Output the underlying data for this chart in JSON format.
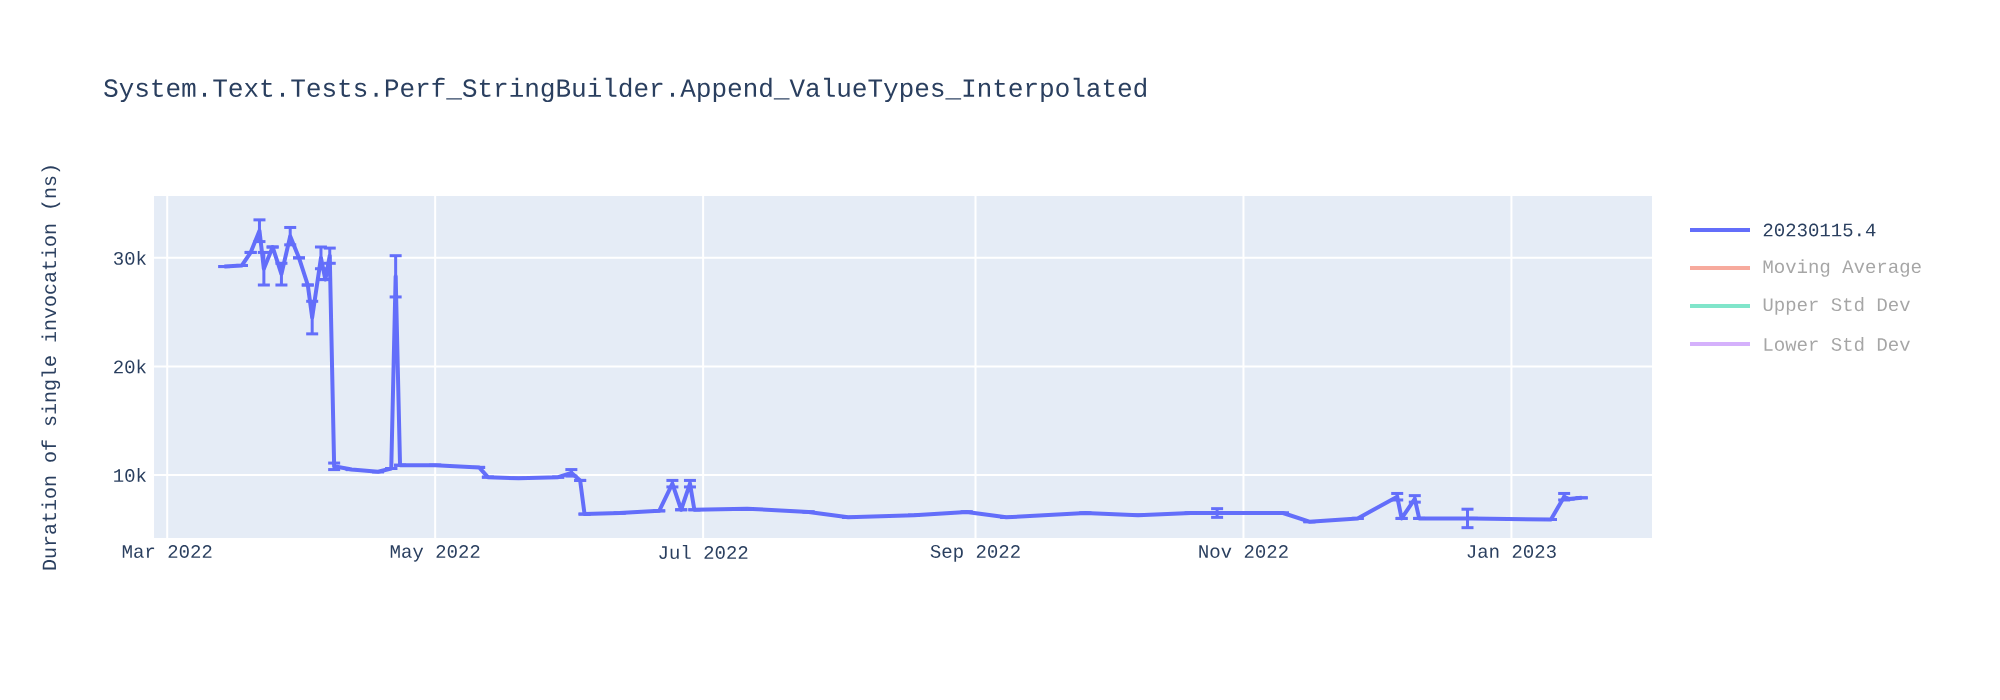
{
  "chart_data": {
    "type": "line",
    "title": "System.Text.Tests.Perf_StringBuilder.Append_ValueTypes_Interpolated",
    "ylabel": "Duration of single invocation (ns)",
    "x": [
      "2022-03-14",
      "2022-03-18",
      "2022-03-20",
      "2022-03-22",
      "2022-03-23",
      "2022-03-25",
      "2022-03-27",
      "2022-03-29",
      "2022-03-31",
      "2022-04-02",
      "2022-04-03",
      "2022-04-05",
      "2022-04-06",
      "2022-04-07",
      "2022-04-08",
      "2022-04-12",
      "2022-04-18",
      "2022-04-21",
      "2022-04-22",
      "2022-04-23",
      "2022-05-01",
      "2022-05-11",
      "2022-05-13",
      "2022-05-20",
      "2022-05-29",
      "2022-06-01",
      "2022-06-03",
      "2022-06-04",
      "2022-06-12",
      "2022-06-21",
      "2022-06-24",
      "2022-06-26",
      "2022-06-28",
      "2022-06-29",
      "2022-07-11",
      "2022-07-25",
      "2022-08-03",
      "2022-08-18",
      "2022-08-30",
      "2022-09-08",
      "2022-09-26",
      "2022-10-08",
      "2022-10-20",
      "2022-10-26",
      "2022-11-10",
      "2022-11-16",
      "2022-11-27",
      "2022-12-06",
      "2022-12-07",
      "2022-12-10",
      "2022-12-11",
      "2022-12-22",
      "2022-12-23",
      "2023-01-10",
      "2023-01-13",
      "2023-01-14",
      "2023-01-17"
    ],
    "series": [
      {
        "name": "20230115.4",
        "color": "#636efa",
        "values": [
          29200,
          29300,
          30500,
          32500,
          29000,
          31000,
          28500,
          32000,
          30000,
          27500,
          24500,
          30000,
          28000,
          30200,
          10800,
          10500,
          10300,
          10600,
          28300,
          10900,
          10900,
          10700,
          9800,
          9700,
          9800,
          10200,
          9500,
          6400,
          6500,
          6700,
          9200,
          6800,
          9200,
          6800,
          6900,
          6600,
          6100,
          6300,
          6600,
          6100,
          6500,
          6300,
          6500,
          6500,
          6500,
          5700,
          6000,
          8000,
          6000,
          7800,
          6000,
          6000,
          6000,
          5900,
          8000,
          7800,
          7900
        ],
        "errors": [
          null,
          null,
          null,
          1000,
          1500,
          null,
          1000,
          800,
          null,
          null,
          1500,
          1000,
          null,
          700,
          300,
          null,
          null,
          null,
          1900,
          null,
          null,
          null,
          null,
          null,
          null,
          300,
          null,
          null,
          null,
          null,
          300,
          null,
          300,
          null,
          null,
          null,
          null,
          null,
          null,
          null,
          null,
          null,
          null,
          400,
          null,
          null,
          null,
          300,
          null,
          300,
          null,
          850,
          null,
          null,
          300,
          null,
          null
        ]
      },
      {
        "name": "Moving Average",
        "color": "#f7aa9d",
        "values": [
          null,
          null,
          null,
          null,
          null,
          null,
          null,
          null,
          null,
          null,
          null,
          null,
          null,
          null,
          null,
          null,
          null,
          null,
          null,
          null,
          null,
          null,
          null,
          null,
          null,
          null,
          null,
          null,
          null,
          null,
          null,
          null,
          null,
          null,
          null,
          null,
          null,
          null,
          null,
          null,
          null,
          null,
          null,
          null,
          null,
          null,
          null,
          null,
          null,
          null,
          null,
          null,
          null,
          null,
          null,
          null,
          null
        ]
      },
      {
        "name": "Upper Std Dev",
        "color": "#80e5ca",
        "values": [
          null,
          null,
          null,
          null,
          null,
          null,
          null,
          null,
          null,
          null,
          null,
          null,
          null,
          null,
          null,
          null,
          null,
          null,
          null,
          null,
          null,
          null,
          null,
          null,
          null,
          null,
          null,
          null,
          null,
          null,
          null,
          null,
          null,
          null,
          null,
          null,
          null,
          null,
          null,
          null,
          null,
          null,
          null,
          null,
          null,
          null,
          null,
          null,
          null,
          null,
          null,
          null,
          null,
          null,
          null,
          null,
          null
        ]
      },
      {
        "name": "Lower Std Dev",
        "color": "#d5b1fc",
        "values": [
          null,
          null,
          null,
          null,
          null,
          null,
          null,
          null,
          null,
          null,
          null,
          null,
          null,
          null,
          null,
          null,
          null,
          null,
          null,
          null,
          null,
          null,
          null,
          null,
          null,
          null,
          null,
          null,
          null,
          null,
          null,
          null,
          null,
          null,
          null,
          null,
          null,
          null,
          null,
          null,
          null,
          null,
          null,
          null,
          null,
          null,
          null,
          null,
          null,
          null,
          null,
          null,
          null,
          null,
          null,
          null,
          null
        ]
      }
    ],
    "xlim": [
      "2022-02-26",
      "2023-02-02"
    ],
    "xticks": [
      {
        "value": "2022-03-01",
        "label": "Mar 2022"
      },
      {
        "value": "2022-05-01",
        "label": "May 2022"
      },
      {
        "value": "2022-07-01",
        "label": "Jul 2022"
      },
      {
        "value": "2022-09-01",
        "label": "Sep 2022"
      },
      {
        "value": "2022-11-01",
        "label": "Nov 2022"
      },
      {
        "value": "2023-01-01",
        "label": "Jan 2023"
      }
    ],
    "ylim": [
      4200,
      35700
    ],
    "yticks": [
      {
        "value": 10000,
        "label": "10k"
      },
      {
        "value": 20000,
        "label": "20k"
      },
      {
        "value": 30000,
        "label": "30k"
      }
    ],
    "grid": true,
    "legend": "top right",
    "marker": "none",
    "line_style": "solid"
  }
}
